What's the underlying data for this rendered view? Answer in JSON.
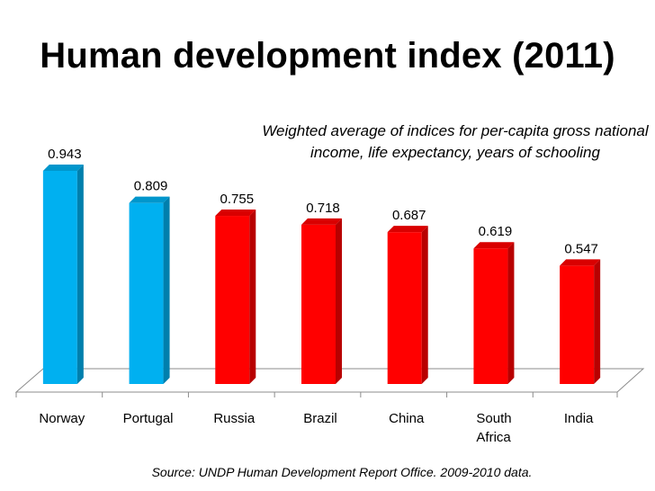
{
  "chart_data": {
    "type": "bar",
    "title": "Human development index (2011)",
    "subtitle": "Weighted average of indices for per-capita gross national income, life expectancy, years of schooling",
    "categories": [
      "Norway",
      "Portugal",
      "Russia",
      "Brazil",
      "China",
      "South Africa",
      "India"
    ],
    "category_lines": [
      [
        "Norway"
      ],
      [
        "Portugal"
      ],
      [
        "Russia"
      ],
      [
        "Brazil"
      ],
      [
        "China"
      ],
      [
        "South",
        "Africa"
      ],
      [
        "India"
      ]
    ],
    "values": [
      0.943,
      0.809,
      0.755,
      0.718,
      0.687,
      0.619,
      0.547
    ],
    "value_labels": [
      "0.943",
      "0.809",
      "0.755",
      "0.718",
      "0.687",
      "0.619",
      "0.547"
    ],
    "bar_colors": [
      "#00b0f0",
      "#00b0f0",
      "#ff0000",
      "#ff0000",
      "#ff0000",
      "#ff0000",
      "#ff0000"
    ],
    "xlabel": "",
    "ylabel": "",
    "ylim": [
      0,
      1
    ],
    "grid": false,
    "source": "Source: UNDP Human Development Report Office. 2009-2010 data."
  }
}
